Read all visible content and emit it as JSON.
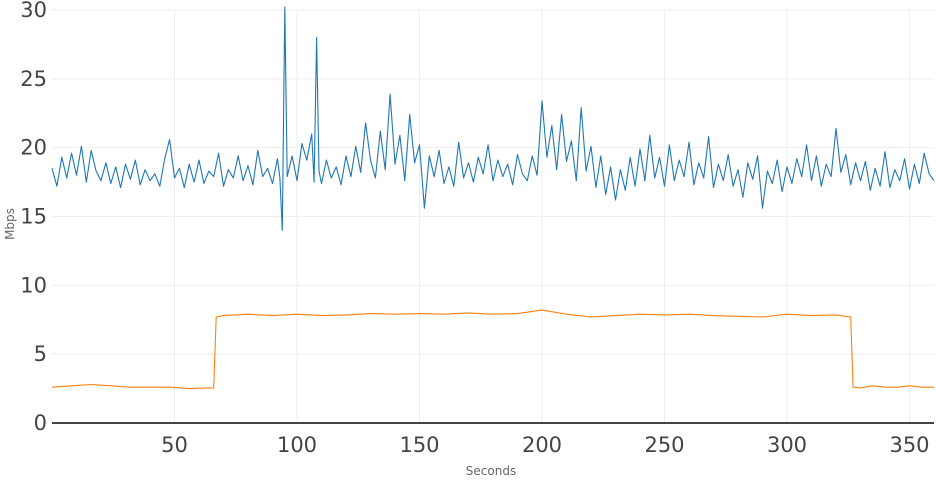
{
  "colors": {
    "series_upper": "#1f77b4",
    "series_lower": "#ff7f0e",
    "grid": "#eeeeee",
    "axis_text": "#444444"
  },
  "chart_data": {
    "type": "line",
    "xlabel": "Seconds",
    "ylabel": "Mbps",
    "xlim": [
      0,
      360
    ],
    "ylim": [
      0,
      30
    ],
    "x_ticks": [
      50,
      100,
      150,
      200,
      250,
      300,
      350
    ],
    "y_ticks": [
      0,
      5,
      10,
      15,
      20,
      25,
      30
    ],
    "grid": true,
    "legend": "none",
    "series": [
      {
        "color": "#1f77b4",
        "points": [
          [
            0,
            18.5
          ],
          [
            2,
            17.2
          ],
          [
            4,
            19.3
          ],
          [
            6,
            17.8
          ],
          [
            8,
            19.6
          ],
          [
            10,
            18.0
          ],
          [
            12,
            20.1
          ],
          [
            14,
            17.5
          ],
          [
            16,
            19.8
          ],
          [
            18,
            18.3
          ],
          [
            20,
            17.6
          ],
          [
            22,
            18.9
          ],
          [
            24,
            17.4
          ],
          [
            26,
            18.6
          ],
          [
            28,
            17.1
          ],
          [
            30,
            18.8
          ],
          [
            32,
            17.7
          ],
          [
            34,
            19.1
          ],
          [
            36,
            17.3
          ],
          [
            38,
            18.4
          ],
          [
            40,
            17.6
          ],
          [
            42,
            18.1
          ],
          [
            44,
            17.2
          ],
          [
            46,
            19.2
          ],
          [
            48,
            20.6
          ],
          [
            50,
            17.8
          ],
          [
            52,
            18.5
          ],
          [
            54,
            17.1
          ],
          [
            56,
            18.8
          ],
          [
            58,
            17.5
          ],
          [
            60,
            19.1
          ],
          [
            62,
            17.4
          ],
          [
            64,
            18.3
          ],
          [
            66,
            17.9
          ],
          [
            68,
            19.6
          ],
          [
            70,
            17.2
          ],
          [
            72,
            18.4
          ],
          [
            74,
            17.8
          ],
          [
            76,
            19.4
          ],
          [
            78,
            17.6
          ],
          [
            80,
            18.7
          ],
          [
            82,
            17.3
          ],
          [
            84,
            19.8
          ],
          [
            86,
            17.9
          ],
          [
            88,
            18.5
          ],
          [
            90,
            17.4
          ],
          [
            92,
            19.2
          ],
          [
            93,
            17.8
          ],
          [
            94,
            14.0
          ],
          [
            95,
            30.2
          ],
          [
            96,
            17.9
          ],
          [
            98,
            19.4
          ],
          [
            100,
            17.6
          ],
          [
            102,
            20.3
          ],
          [
            104,
            19.1
          ],
          [
            106,
            21.0
          ],
          [
            107,
            17.5
          ],
          [
            108,
            28.0
          ],
          [
            109,
            18.3
          ],
          [
            110,
            17.4
          ],
          [
            112,
            19.1
          ],
          [
            114,
            17.8
          ],
          [
            116,
            18.6
          ],
          [
            118,
            17.3
          ],
          [
            120,
            19.4
          ],
          [
            122,
            17.9
          ],
          [
            124,
            20.1
          ],
          [
            126,
            18.2
          ],
          [
            128,
            21.8
          ],
          [
            130,
            19.1
          ],
          [
            132,
            17.8
          ],
          [
            134,
            21.2
          ],
          [
            136,
            18.4
          ],
          [
            138,
            23.9
          ],
          [
            140,
            18.8
          ],
          [
            142,
            20.9
          ],
          [
            144,
            17.6
          ],
          [
            146,
            22.4
          ],
          [
            148,
            18.9
          ],
          [
            150,
            20.2
          ],
          [
            152,
            15.6
          ],
          [
            154,
            19.4
          ],
          [
            156,
            17.9
          ],
          [
            158,
            19.8
          ],
          [
            160,
            17.4
          ],
          [
            162,
            18.6
          ],
          [
            164,
            17.2
          ],
          [
            166,
            20.4
          ],
          [
            168,
            17.8
          ],
          [
            170,
            18.9
          ],
          [
            172,
            17.5
          ],
          [
            174,
            19.3
          ],
          [
            176,
            18.1
          ],
          [
            178,
            20.2
          ],
          [
            180,
            17.6
          ],
          [
            182,
            19.1
          ],
          [
            184,
            17.9
          ],
          [
            186,
            18.8
          ],
          [
            188,
            17.3
          ],
          [
            190,
            19.5
          ],
          [
            192,
            18.1
          ],
          [
            194,
            17.6
          ],
          [
            196,
            19.4
          ],
          [
            198,
            18.0
          ],
          [
            200,
            23.4
          ],
          [
            202,
            19.3
          ],
          [
            204,
            21.6
          ],
          [
            206,
            18.4
          ],
          [
            208,
            22.4
          ],
          [
            210,
            19.0
          ],
          [
            212,
            20.5
          ],
          [
            214,
            17.6
          ],
          [
            216,
            22.9
          ],
          [
            218,
            18.3
          ],
          [
            220,
            20.1
          ],
          [
            222,
            17.1
          ],
          [
            224,
            19.4
          ],
          [
            226,
            16.6
          ],
          [
            228,
            18.6
          ],
          [
            230,
            16.2
          ],
          [
            232,
            18.4
          ],
          [
            234,
            16.9
          ],
          [
            236,
            19.3
          ],
          [
            238,
            17.2
          ],
          [
            240,
            19.9
          ],
          [
            242,
            17.6
          ],
          [
            244,
            20.9
          ],
          [
            246,
            17.8
          ],
          [
            248,
            19.3
          ],
          [
            250,
            17.2
          ],
          [
            252,
            20.2
          ],
          [
            254,
            17.6
          ],
          [
            256,
            19.1
          ],
          [
            258,
            17.9
          ],
          [
            260,
            20.4
          ],
          [
            262,
            17.3
          ],
          [
            264,
            18.9
          ],
          [
            266,
            17.8
          ],
          [
            268,
            20.8
          ],
          [
            270,
            17.1
          ],
          [
            272,
            18.8
          ],
          [
            274,
            17.6
          ],
          [
            276,
            19.5
          ],
          [
            278,
            17.2
          ],
          [
            280,
            18.4
          ],
          [
            282,
            16.4
          ],
          [
            284,
            18.9
          ],
          [
            286,
            17.7
          ],
          [
            288,
            19.4
          ],
          [
            290,
            15.6
          ],
          [
            292,
            18.3
          ],
          [
            294,
            17.4
          ],
          [
            296,
            19.1
          ],
          [
            298,
            16.8
          ],
          [
            300,
            18.6
          ],
          [
            302,
            17.4
          ],
          [
            304,
            19.2
          ],
          [
            306,
            17.9
          ],
          [
            308,
            20.2
          ],
          [
            310,
            17.6
          ],
          [
            312,
            19.4
          ],
          [
            314,
            17.2
          ],
          [
            316,
            18.8
          ],
          [
            318,
            17.9
          ],
          [
            320,
            21.4
          ],
          [
            322,
            18.2
          ],
          [
            324,
            19.5
          ],
          [
            326,
            17.3
          ],
          [
            328,
            18.9
          ],
          [
            330,
            17.6
          ],
          [
            332,
            19.0
          ],
          [
            334,
            16.9
          ],
          [
            336,
            18.5
          ],
          [
            338,
            17.2
          ],
          [
            340,
            19.7
          ],
          [
            342,
            17.1
          ],
          [
            344,
            18.4
          ],
          [
            346,
            17.6
          ],
          [
            348,
            19.2
          ],
          [
            350,
            17.0
          ],
          [
            352,
            18.8
          ],
          [
            354,
            17.4
          ],
          [
            356,
            19.6
          ],
          [
            358,
            18.1
          ],
          [
            360,
            17.6
          ]
        ]
      },
      {
        "color": "#ff7f0e",
        "points": [
          [
            0,
            2.6
          ],
          [
            8,
            2.7
          ],
          [
            16,
            2.8
          ],
          [
            24,
            2.7
          ],
          [
            32,
            2.6
          ],
          [
            40,
            2.6
          ],
          [
            48,
            2.6
          ],
          [
            56,
            2.5
          ],
          [
            64,
            2.55
          ],
          [
            66,
            2.55
          ],
          [
            67,
            7.7
          ],
          [
            70,
            7.8
          ],
          [
            80,
            7.9
          ],
          [
            90,
            7.8
          ],
          [
            100,
            7.9
          ],
          [
            110,
            7.8
          ],
          [
            120,
            7.85
          ],
          [
            130,
            7.95
          ],
          [
            140,
            7.9
          ],
          [
            150,
            7.95
          ],
          [
            160,
            7.9
          ],
          [
            170,
            8.0
          ],
          [
            180,
            7.9
          ],
          [
            190,
            7.95
          ],
          [
            200,
            8.2
          ],
          [
            210,
            7.9
          ],
          [
            220,
            7.7
          ],
          [
            230,
            7.8
          ],
          [
            240,
            7.9
          ],
          [
            250,
            7.85
          ],
          [
            260,
            7.9
          ],
          [
            270,
            7.8
          ],
          [
            280,
            7.75
          ],
          [
            290,
            7.7
          ],
          [
            300,
            7.9
          ],
          [
            310,
            7.8
          ],
          [
            320,
            7.85
          ],
          [
            326,
            7.7
          ],
          [
            327,
            2.6
          ],
          [
            330,
            2.55
          ],
          [
            335,
            2.7
          ],
          [
            340,
            2.6
          ],
          [
            345,
            2.6
          ],
          [
            350,
            2.7
          ],
          [
            355,
            2.6
          ],
          [
            360,
            2.6
          ]
        ]
      }
    ]
  }
}
